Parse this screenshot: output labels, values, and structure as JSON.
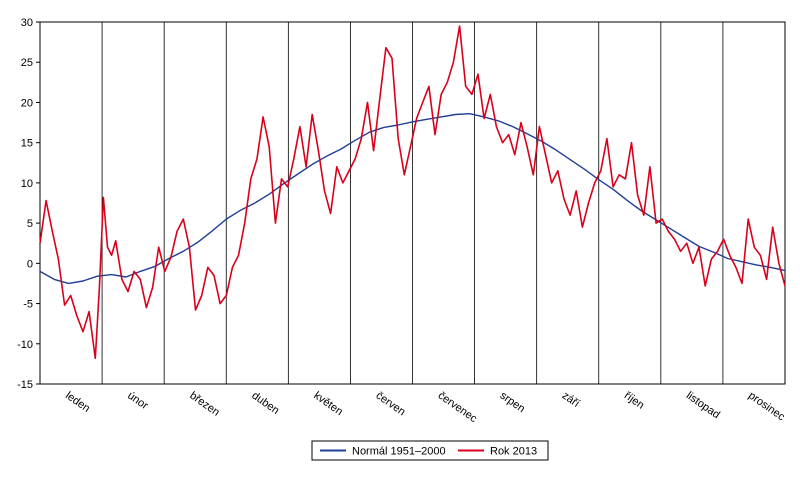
{
  "chart_data": {
    "type": "line",
    "title": "",
    "xlabel": "",
    "ylabel": "",
    "ylim": [
      -15,
      30
    ],
    "yticks": [
      -15,
      -10,
      -5,
      0,
      5,
      10,
      15,
      20,
      25,
      30
    ],
    "grid": {
      "vertical": true,
      "horizontal": false
    },
    "legend_position": "bottom-center",
    "categories": [
      "leden",
      "únor",
      "březen",
      "duben",
      "květen",
      "červen",
      "červenec",
      "srpen",
      "září",
      "říjen",
      "listopad",
      "prosinec"
    ],
    "day_of_year_range": [
      1,
      365
    ],
    "series": [
      {
        "name": "Normál 1951–2000",
        "color": "#1f3f96",
        "points": [
          [
            1,
            -1.0
          ],
          [
            8,
            -2.0
          ],
          [
            15,
            -2.5
          ],
          [
            22,
            -2.2
          ],
          [
            29,
            -1.6
          ],
          [
            36,
            -1.4
          ],
          [
            43,
            -1.7
          ],
          [
            50,
            -1.0
          ],
          [
            57,
            -0.4
          ],
          [
            64,
            0.6
          ],
          [
            71,
            1.5
          ],
          [
            78,
            2.6
          ],
          [
            85,
            4.0
          ],
          [
            92,
            5.5
          ],
          [
            99,
            6.6
          ],
          [
            106,
            7.5
          ],
          [
            113,
            8.6
          ],
          [
            120,
            9.9
          ],
          [
            127,
            11.1
          ],
          [
            134,
            12.3
          ],
          [
            141,
            13.3
          ],
          [
            148,
            14.2
          ],
          [
            155,
            15.3
          ],
          [
            162,
            16.3
          ],
          [
            169,
            16.9
          ],
          [
            176,
            17.2
          ],
          [
            183,
            17.6
          ],
          [
            190,
            17.9
          ],
          [
            197,
            18.2
          ],
          [
            204,
            18.5
          ],
          [
            211,
            18.6
          ],
          [
            218,
            18.2
          ],
          [
            225,
            17.7
          ],
          [
            232,
            17.0
          ],
          [
            239,
            16.1
          ],
          [
            246,
            15.2
          ],
          [
            253,
            14.1
          ],
          [
            260,
            12.9
          ],
          [
            267,
            11.7
          ],
          [
            274,
            10.4
          ],
          [
            281,
            9.2
          ],
          [
            288,
            7.8
          ],
          [
            295,
            6.5
          ],
          [
            302,
            5.4
          ],
          [
            309,
            4.3
          ],
          [
            316,
            3.2
          ],
          [
            323,
            2.1
          ],
          [
            330,
            1.4
          ],
          [
            337,
            0.6
          ],
          [
            344,
            0.2
          ],
          [
            351,
            -0.2
          ],
          [
            358,
            -0.5
          ],
          [
            365,
            -0.9
          ]
        ]
      },
      {
        "name": "Rok 2013",
        "color": "#d9001b",
        "points": [
          [
            1,
            2.5
          ],
          [
            4,
            7.8
          ],
          [
            7,
            4.0
          ],
          [
            10,
            0.5
          ],
          [
            13,
            -5.2
          ],
          [
            16,
            -4.0
          ],
          [
            19,
            -6.5
          ],
          [
            22,
            -8.5
          ],
          [
            25,
            -6.0
          ],
          [
            28,
            -11.8
          ],
          [
            30,
            -3.0
          ],
          [
            32,
            8.2
          ],
          [
            34,
            2.0
          ],
          [
            36,
            1.0
          ],
          [
            38,
            2.8
          ],
          [
            41,
            -2.0
          ],
          [
            44,
            -3.5
          ],
          [
            47,
            -1.0
          ],
          [
            50,
            -2.0
          ],
          [
            53,
            -5.5
          ],
          [
            56,
            -3.0
          ],
          [
            59,
            2.0
          ],
          [
            62,
            -1.0
          ],
          [
            65,
            0.8
          ],
          [
            68,
            4.0
          ],
          [
            71,
            5.5
          ],
          [
            74,
            2.0
          ],
          [
            77,
            -5.8
          ],
          [
            80,
            -4.0
          ],
          [
            83,
            -0.5
          ],
          [
            86,
            -1.5
          ],
          [
            89,
            -5.0
          ],
          [
            92,
            -4.0
          ],
          [
            95,
            -0.5
          ],
          [
            98,
            1.0
          ],
          [
            101,
            5.0
          ],
          [
            104,
            10.5
          ],
          [
            107,
            13.0
          ],
          [
            110,
            18.2
          ],
          [
            113,
            14.5
          ],
          [
            116,
            5.0
          ],
          [
            119,
            10.5
          ],
          [
            122,
            9.5
          ],
          [
            125,
            13.0
          ],
          [
            128,
            17.0
          ],
          [
            131,
            12.0
          ],
          [
            134,
            18.5
          ],
          [
            137,
            14.0
          ],
          [
            140,
            9.0
          ],
          [
            143,
            6.2
          ],
          [
            146,
            12.0
          ],
          [
            149,
            10.0
          ],
          [
            152,
            11.5
          ],
          [
            155,
            13.0
          ],
          [
            158,
            15.5
          ],
          [
            161,
            20.0
          ],
          [
            164,
            14.0
          ],
          [
            167,
            20.5
          ],
          [
            170,
            26.8
          ],
          [
            173,
            25.5
          ],
          [
            176,
            15.5
          ],
          [
            179,
            11.0
          ],
          [
            182,
            14.5
          ],
          [
            185,
            18.0
          ],
          [
            188,
            20.0
          ],
          [
            191,
            22.0
          ],
          [
            194,
            16.0
          ],
          [
            197,
            21.0
          ],
          [
            200,
            22.5
          ],
          [
            203,
            25.0
          ],
          [
            206,
            29.5
          ],
          [
            209,
            22.0
          ],
          [
            212,
            21.0
          ],
          [
            215,
            23.5
          ],
          [
            218,
            18.0
          ],
          [
            221,
            21.0
          ],
          [
            224,
            17.0
          ],
          [
            227,
            15.0
          ],
          [
            230,
            16.0
          ],
          [
            233,
            13.5
          ],
          [
            236,
            17.5
          ],
          [
            239,
            14.5
          ],
          [
            242,
            11.0
          ],
          [
            245,
            17.0
          ],
          [
            248,
            13.5
          ],
          [
            251,
            10.0
          ],
          [
            254,
            11.5
          ],
          [
            257,
            8.0
          ],
          [
            260,
            6.0
          ],
          [
            263,
            9.0
          ],
          [
            266,
            4.5
          ],
          [
            269,
            7.5
          ],
          [
            272,
            10.0
          ],
          [
            275,
            11.5
          ],
          [
            278,
            15.5
          ],
          [
            281,
            9.5
          ],
          [
            284,
            11.0
          ],
          [
            287,
            10.5
          ],
          [
            290,
            15.0
          ],
          [
            293,
            8.5
          ],
          [
            296,
            6.0
          ],
          [
            299,
            12.0
          ],
          [
            302,
            5.0
          ],
          [
            305,
            5.5
          ],
          [
            308,
            4.0
          ],
          [
            311,
            3.0
          ],
          [
            314,
            1.5
          ],
          [
            317,
            2.5
          ],
          [
            320,
            0.0
          ],
          [
            323,
            2.0
          ],
          [
            326,
            -2.8
          ],
          [
            329,
            0.5
          ],
          [
            332,
            1.5
          ],
          [
            335,
            3.0
          ],
          [
            338,
            1.0
          ],
          [
            341,
            -0.5
          ],
          [
            344,
            -2.5
          ],
          [
            347,
            5.5
          ],
          [
            350,
            2.0
          ],
          [
            353,
            1.0
          ],
          [
            356,
            -2.0
          ],
          [
            359,
            4.5
          ],
          [
            362,
            0.0
          ],
          [
            365,
            -2.8
          ]
        ]
      }
    ]
  }
}
